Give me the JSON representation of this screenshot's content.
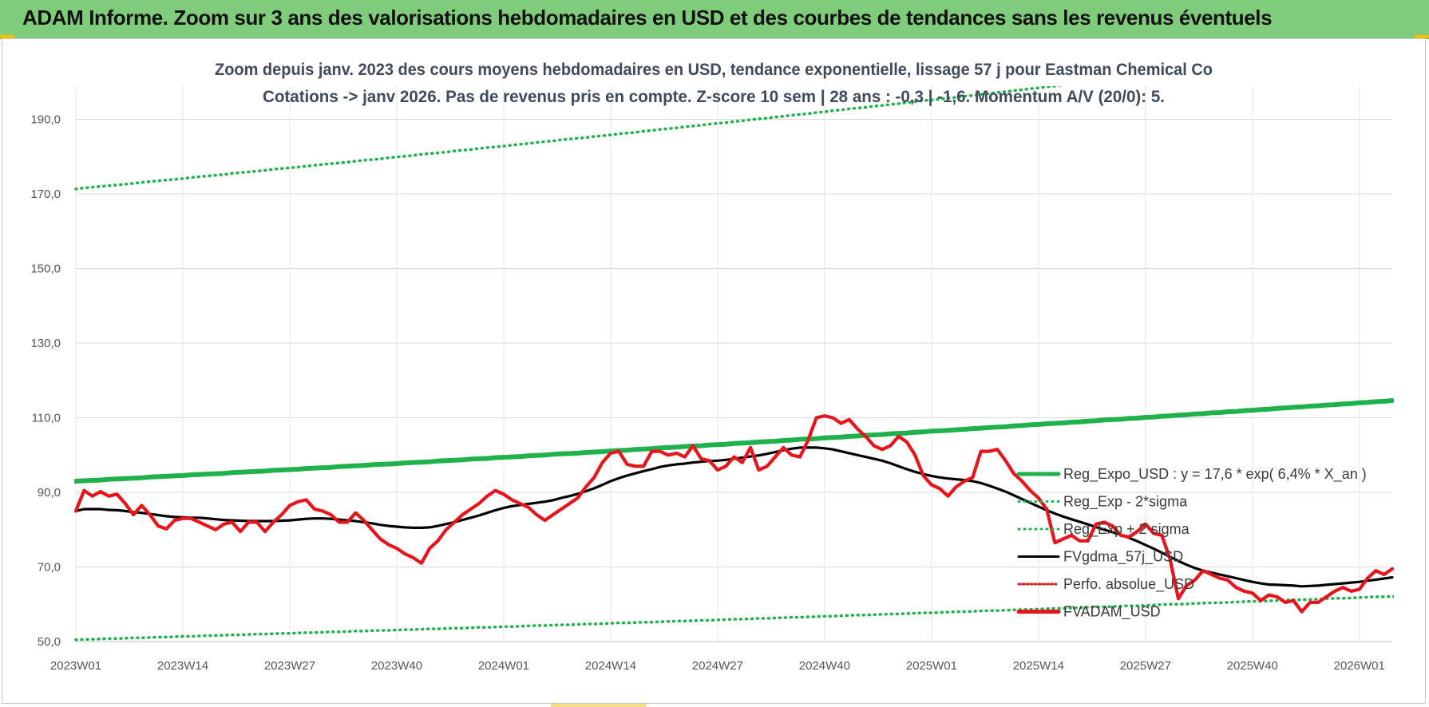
{
  "header": {
    "title": "ADAM Informe. Zoom sur 3 ans des valorisations hebdomadaires en USD et des courbes de tendances sans les revenus éventuels"
  },
  "colors": {
    "banner": "#7fcc7a",
    "reg_expo": "#1fb14b",
    "sigma": "#1fb14b",
    "fvgdma": "#000000",
    "perfo": "#d42020",
    "fvadam": "#e8141b"
  },
  "chart_data": {
    "type": "line",
    "title_line1": "Zoom depuis janv. 2023 des cours moyens hebdomadaires en USD, tendance exponentielle, lissage 57 j pour Eastman Chemical Co",
    "title_line2": "Cotations -> janv 2026. Pas de revenus pris en compte. Z-score 10 sem | 28 ans : -0,3 | -1,6. Momentum A/V (20/0): 5.",
    "ylim": [
      50,
      200
    ],
    "yticks": [
      50,
      70,
      90,
      110,
      130,
      150,
      170,
      190
    ],
    "ytick_labels": [
      "50,0",
      "70,0",
      "90,0",
      "110,0",
      "130,0",
      "150,0",
      "170,0",
      "190,0"
    ],
    "xtick_labels": [
      "2023W01",
      "2023W14",
      "2023W27",
      "2023W40",
      "2024W01",
      "2024W14",
      "2024W27",
      "2024W40",
      "2025W01",
      "2025W14",
      "2025W27",
      "2025W40",
      "2026W01"
    ],
    "xtick_index": [
      0,
      13,
      26,
      39,
      52,
      65,
      78,
      91,
      104,
      117,
      130,
      143,
      156
    ],
    "n_weeks": 161,
    "grid": true,
    "legend_position": "bottom-right",
    "series": [
      {
        "name": "Reg_Expo_USD : y = 17,6 * exp( 6,4% *  X_an )",
        "style": "solid-thick",
        "values": [
          93.0,
          93.1,
          93.2,
          93.3,
          93.5,
          93.6,
          93.7,
          93.8,
          93.9,
          94.1,
          94.2,
          94.3,
          94.4,
          94.5,
          94.7,
          94.8,
          94.9,
          95.0,
          95.1,
          95.3,
          95.4,
          95.5,
          95.6,
          95.7,
          95.9,
          96.0,
          96.1,
          96.2,
          96.4,
          96.5,
          96.6,
          96.7,
          96.9,
          97.0,
          97.1,
          97.2,
          97.4,
          97.5,
          97.6,
          97.7,
          97.9,
          98.0,
          98.1,
          98.2,
          98.4,
          98.5,
          98.6,
          98.7,
          98.9,
          99.0,
          99.1,
          99.3,
          99.4,
          99.5,
          99.6,
          99.8,
          99.9,
          100.0,
          100.2,
          100.3,
          100.4,
          100.5,
          100.7,
          100.8,
          100.9,
          101.1,
          101.2,
          101.3,
          101.5,
          101.6,
          101.7,
          101.9,
          102.0,
          102.1,
          102.3,
          102.4,
          102.5,
          102.7,
          102.8,
          102.9,
          103.1,
          103.2,
          103.3,
          103.5,
          103.6,
          103.7,
          103.9,
          104.0,
          104.2,
          104.3,
          104.4,
          104.6,
          104.7,
          104.8,
          105.0,
          105.1,
          105.3,
          105.4,
          105.5,
          105.7,
          105.8,
          105.9,
          106.1,
          106.2,
          106.4,
          106.5,
          106.6,
          106.8,
          106.9,
          107.1,
          107.2,
          107.4,
          107.5,
          107.6,
          107.8,
          107.9,
          108.1,
          108.2,
          108.4,
          108.5,
          108.6,
          108.8,
          108.9,
          109.1,
          109.2,
          109.4,
          109.5,
          109.6,
          109.8,
          109.9,
          110.1,
          110.2,
          110.4,
          110.5,
          110.7,
          110.8,
          111.0,
          111.1,
          111.3,
          111.4,
          111.6,
          111.7,
          111.9,
          112.0,
          112.2,
          112.3,
          112.5,
          112.6,
          112.8,
          112.9,
          113.1,
          113.2,
          113.4,
          113.5,
          113.7,
          113.8,
          114.0,
          114.1,
          114.3,
          114.4,
          114.6
        ]
      },
      {
        "name": "Reg_Exp - 2*sigma",
        "style": "dotted",
        "values": [
          50.5,
          50.6,
          50.6,
          50.7,
          50.8,
          50.8,
          50.9,
          51.0,
          51.0,
          51.1,
          51.2,
          51.2,
          51.3,
          51.4,
          51.4,
          51.5,
          51.6,
          51.6,
          51.7,
          51.8,
          51.8,
          51.9,
          52.0,
          52.0,
          52.1,
          52.2,
          52.2,
          52.3,
          52.4,
          52.4,
          52.5,
          52.6,
          52.6,
          52.7,
          52.8,
          52.8,
          52.9,
          53.0,
          53.0,
          53.1,
          53.2,
          53.2,
          53.3,
          53.4,
          53.4,
          53.5,
          53.6,
          53.6,
          53.7,
          53.8,
          53.8,
          53.9,
          54.0,
          54.0,
          54.1,
          54.2,
          54.3,
          54.3,
          54.4,
          54.5,
          54.5,
          54.6,
          54.7,
          54.7,
          54.8,
          54.9,
          55.0,
          55.0,
          55.1,
          55.2,
          55.2,
          55.3,
          55.4,
          55.5,
          55.5,
          55.6,
          55.7,
          55.7,
          55.8,
          55.9,
          56.0,
          56.0,
          56.1,
          56.2,
          56.2,
          56.3,
          56.4,
          56.5,
          56.5,
          56.6,
          56.7,
          56.8,
          56.8,
          56.9,
          57.0,
          57.1,
          57.1,
          57.2,
          57.3,
          57.4,
          57.4,
          57.5,
          57.6,
          57.7,
          57.7,
          57.8,
          57.9,
          58.0,
          58.0,
          58.1,
          58.2,
          58.3,
          58.3,
          58.4,
          58.5,
          58.6,
          58.6,
          58.7,
          58.8,
          58.9,
          58.9,
          59.0,
          59.1,
          59.2,
          59.3,
          59.3,
          59.4,
          59.5,
          59.6,
          59.6,
          59.7,
          59.8,
          59.9,
          60.0,
          60.0,
          60.1,
          60.2,
          60.3,
          60.4,
          60.4,
          60.5,
          60.6,
          60.7,
          60.8,
          60.8,
          60.9,
          61.0,
          61.1,
          61.2,
          61.2,
          61.3,
          61.4,
          61.5,
          61.6,
          61.6,
          61.7,
          61.8,
          61.9,
          62.0,
          62.0,
          62.1,
          62.2,
          62.3
        ]
      },
      {
        "name": "Reg_Exp + 2 sigma",
        "style": "dotted",
        "values": [
          171.3,
          171.6,
          171.8,
          172.0,
          172.2,
          172.4,
          172.6,
          172.8,
          173.1,
          173.3,
          173.5,
          173.7,
          173.9,
          174.1,
          174.4,
          174.6,
          174.8,
          175.0,
          175.2,
          175.5,
          175.7,
          175.9,
          176.1,
          176.3,
          176.6,
          176.8,
          177.0,
          177.2,
          177.4,
          177.7,
          177.9,
          178.1,
          178.3,
          178.5,
          178.8,
          179.0,
          179.2,
          179.4,
          179.7,
          179.9,
          180.1,
          180.3,
          180.6,
          180.8,
          181.0,
          181.2,
          181.5,
          181.7,
          181.9,
          182.2,
          182.4,
          182.6,
          182.8,
          183.1,
          183.3,
          183.5,
          183.8,
          184.0,
          184.2,
          184.5,
          184.7,
          184.9,
          185.1,
          185.4,
          185.6,
          185.8,
          186.1,
          186.3,
          186.5,
          186.8,
          187.0,
          187.3,
          187.5,
          187.7,
          188.0,
          188.2,
          188.4,
          188.7,
          188.9,
          189.1,
          189.4,
          189.6,
          189.9,
          190.1,
          190.3,
          190.6,
          190.8,
          191.1,
          191.3,
          191.5,
          191.8,
          192.0,
          192.3,
          192.5,
          192.8,
          193.0,
          193.2,
          193.5,
          193.7,
          194.0,
          194.2,
          194.5,
          194.7,
          195.0,
          195.2,
          195.4,
          195.7,
          195.9,
          196.2,
          196.4,
          196.7,
          196.9,
          197.2,
          197.4,
          197.7,
          197.9,
          198.2,
          198.4,
          198.7,
          198.9,
          199.2,
          199.4,
          199.7,
          199.9,
          200.2,
          200.4,
          200.7,
          200.9,
          201.2,
          201.5,
          201.7,
          202.0,
          202.2,
          202.5,
          202.7,
          203.0,
          203.2,
          203.5,
          203.8,
          204.0,
          204.3,
          204.5,
          204.8,
          205.0,
          205.3,
          205.6,
          205.8,
          206.1,
          206.3,
          206.6,
          206.9,
          207.1,
          207.4,
          207.7,
          207.9,
          208.2,
          208.4,
          208.7,
          209.0,
          209.2,
          209.5,
          209.8,
          210.0
        ]
      },
      {
        "name": "FVgdma_57j_USD",
        "style": "solid",
        "values": [
          85.0,
          85.5,
          85.5,
          85.5,
          85.3,
          85.2,
          85.0,
          84.7,
          84.5,
          84.2,
          83.9,
          83.6,
          83.4,
          83.3,
          83.2,
          83.2,
          83.0,
          82.8,
          82.6,
          82.5,
          82.4,
          82.3,
          82.3,
          82.3,
          82.3,
          82.4,
          82.5,
          82.7,
          82.9,
          83.0,
          83.0,
          82.9,
          82.7,
          82.5,
          82.3,
          82.0,
          81.7,
          81.3,
          81.0,
          80.8,
          80.6,
          80.5,
          80.5,
          80.6,
          81.0,
          81.5,
          82.0,
          82.6,
          83.2,
          83.8,
          84.5,
          85.2,
          85.8,
          86.3,
          86.6,
          86.9,
          87.2,
          87.5,
          87.9,
          88.5,
          89.0,
          89.6,
          90.3,
          91.1,
          92.0,
          93.0,
          93.8,
          94.5,
          95.1,
          95.7,
          96.2,
          96.8,
          97.2,
          97.5,
          97.7,
          98.0,
          98.2,
          98.4,
          98.5,
          98.7,
          99.0,
          99.3,
          99.6,
          99.9,
          100.3,
          100.8,
          101.3,
          101.7,
          102.0,
          102.0,
          102.0,
          101.8,
          101.5,
          101.0,
          100.5,
          100.0,
          99.5,
          99.0,
          98.5,
          97.8,
          97.0,
          96.2,
          95.5,
          94.9,
          94.4,
          94.0,
          93.7,
          93.5,
          93.3,
          93.0,
          92.5,
          91.8,
          91.0,
          90.2,
          89.2,
          88.2,
          87.2,
          86.2,
          85.2,
          84.3,
          83.5,
          82.8,
          82.1,
          81.4,
          80.7,
          80.0,
          79.3,
          78.6,
          77.8,
          76.9,
          75.9,
          74.9,
          73.8,
          72.7,
          71.6,
          70.6,
          69.7,
          69.0,
          68.5,
          68.0,
          67.5,
          67.0,
          66.5,
          66.0,
          65.6,
          65.3,
          65.2,
          65.1,
          65.0,
          64.8,
          64.9,
          65.0,
          65.2,
          65.4,
          65.6,
          65.8,
          66.0,
          66.3,
          66.6,
          66.9,
          67.2
        ]
      },
      {
        "name": "Perfo. absolue_USD",
        "style": "dotted-red",
        "values": []
      },
      {
        "name": "FVADAM_USD",
        "style": "solid-thick",
        "values": [
          85.0,
          90.5,
          89.0,
          90.2,
          89.0,
          89.5,
          87.0,
          84.0,
          86.5,
          84.0,
          81.0,
          80.2,
          82.5,
          83.0,
          83.0,
          82.0,
          81.0,
          80.0,
          81.5,
          82.0,
          79.5,
          82.0,
          82.0,
          79.5,
          82.0,
          84.0,
          86.5,
          87.5,
          88.0,
          85.5,
          85.0,
          84.0,
          82.0,
          82.0,
          84.5,
          82.5,
          80.0,
          77.5,
          76.0,
          75.0,
          73.5,
          72.5,
          71.0,
          75.0,
          77.0,
          80.0,
          82.0,
          84.0,
          85.5,
          87.0,
          89.0,
          90.5,
          89.5,
          88.0,
          87.0,
          86.0,
          84.0,
          82.5,
          84.0,
          85.5,
          87.0,
          88.5,
          91.5,
          94.0,
          98.0,
          100.5,
          101.0,
          97.5,
          97.0,
          97.0,
          101.0,
          101.0,
          100.0,
          100.5,
          99.5,
          102.5,
          99.0,
          98.5,
          96.0,
          97.0,
          99.5,
          98.0,
          102.0,
          96.0,
          97.0,
          99.5,
          102.0,
          100.0,
          99.5,
          104.0,
          110.0,
          110.5,
          110.0,
          108.5,
          109.5,
          107.0,
          105.0,
          102.5,
          101.5,
          102.5,
          105.0,
          103.5,
          100.0,
          94.5,
          92.0,
          91.0,
          89.0,
          91.5,
          93.0,
          94.0,
          101.0,
          101.0,
          101.5,
          98.5,
          95.0,
          93.0,
          90.5,
          88.5,
          85.5,
          76.5,
          77.5,
          78.5,
          77.0,
          77.0,
          81.5,
          82.0,
          81.0,
          78.5,
          78.0,
          79.5,
          81.5,
          79.0,
          78.5,
          72.0,
          61.5,
          65.0,
          66.5,
          69.0,
          68.0,
          67.0,
          66.5,
          64.5,
          63.5,
          63.0,
          61.0,
          62.5,
          62.0,
          60.5,
          61.0,
          58.0,
          60.5,
          60.5,
          62.0,
          63.5,
          64.5,
          63.5,
          64.0,
          67.0,
          69.0,
          68.0,
          69.5
        ]
      }
    ]
  }
}
